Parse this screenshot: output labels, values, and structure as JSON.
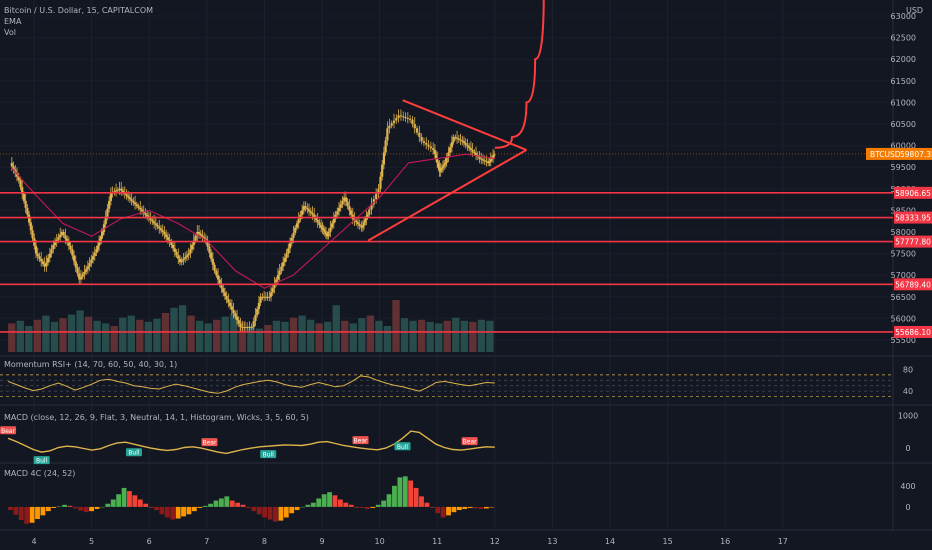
{
  "header": {
    "symbol_line": "Bitcoin / U.S. Dollar, 15, CAPITALCOM",
    "indicator_1": "EMA",
    "indicator_2": "Vol",
    "currency": "USD"
  },
  "colors": {
    "background": "#131722",
    "up": "#26a69a",
    "down": "#ef5350",
    "candle": "#e0b44c",
    "ema": "#c2185b",
    "level_line": "#f23645",
    "price_tag": "#f57c00",
    "forecast": "#ff3d3d"
  },
  "chart_data": [
    {
      "type": "candlestick",
      "pane": "price",
      "y_axis_ticks": [
        "63000",
        "62500",
        "62000",
        "61500",
        "61000",
        "60500",
        "60000",
        "59500",
        "59000",
        "58500",
        "58000",
        "57500",
        "57000",
        "56500",
        "56000",
        "55500"
      ],
      "ylim": [
        55400,
        63200
      ],
      "x_axis_ticks": [
        "4",
        "5",
        "6",
        "7",
        "8",
        "9",
        "10",
        "11",
        "12",
        "13",
        "14",
        "15",
        "16",
        "17"
      ],
      "current_price_tag": {
        "symbol": "BTCUSD",
        "value": "59807.35"
      },
      "horizontal_levels": [
        {
          "label": "58906.65",
          "value": 58906.65
        },
        {
          "label": "58333.95",
          "value": 58333.95
        },
        {
          "label": "57777.80",
          "value": 57777.8
        },
        {
          "label": "56789.40",
          "value": 56789.4
        },
        {
          "label": "55686.10",
          "value": 55686.1
        }
      ],
      "price_path": [
        [
          3.6,
          59600
        ],
        [
          3.75,
          59200
        ],
        [
          3.9,
          58400
        ],
        [
          4.05,
          57500
        ],
        [
          4.2,
          57200
        ],
        [
          4.35,
          57700
        ],
        [
          4.5,
          58000
        ],
        [
          4.65,
          57600
        ],
        [
          4.8,
          56900
        ],
        [
          4.95,
          57200
        ],
        [
          5.1,
          57600
        ],
        [
          5.2,
          58000
        ],
        [
          5.35,
          58900
        ],
        [
          5.5,
          59000
        ],
        [
          5.65,
          58800
        ],
        [
          5.8,
          58600
        ],
        [
          5.95,
          58400
        ],
        [
          6.1,
          58200
        ],
        [
          6.25,
          58000
        ],
        [
          6.4,
          57700
        ],
        [
          6.55,
          57300
        ],
        [
          6.7,
          57500
        ],
        [
          6.85,
          58000
        ],
        [
          7.0,
          57800
        ],
        [
          7.15,
          57100
        ],
        [
          7.3,
          56600
        ],
        [
          7.45,
          56200
        ],
        [
          7.6,
          55800
        ],
        [
          7.8,
          55800
        ],
        [
          7.95,
          56500
        ],
        [
          8.1,
          56500
        ],
        [
          8.25,
          57000
        ],
        [
          8.4,
          57500
        ],
        [
          8.55,
          58100
        ],
        [
          8.7,
          58600
        ],
        [
          8.85,
          58400
        ],
        [
          9.0,
          58100
        ],
        [
          9.1,
          57900
        ],
        [
          9.25,
          58400
        ],
        [
          9.4,
          58800
        ],
        [
          9.55,
          58300
        ],
        [
          9.7,
          58100
        ],
        [
          9.8,
          58400
        ],
        [
          10.0,
          59000
        ],
        [
          10.15,
          60400
        ],
        [
          10.35,
          60700
        ],
        [
          10.55,
          60600
        ],
        [
          10.75,
          60100
        ],
        [
          10.95,
          59900
        ],
        [
          11.05,
          59400
        ],
        [
          11.15,
          59600
        ],
        [
          11.3,
          60200
        ],
        [
          11.45,
          60100
        ],
        [
          11.6,
          59900
        ],
        [
          11.75,
          59700
        ],
        [
          11.9,
          59600
        ],
        [
          12.0,
          59800
        ]
      ],
      "ema_path": [
        [
          3.6,
          59500
        ],
        [
          4.0,
          58900
        ],
        [
          4.5,
          58200
        ],
        [
          5.0,
          57900
        ],
        [
          5.5,
          58300
        ],
        [
          6.0,
          58500
        ],
        [
          6.5,
          58200
        ],
        [
          7.0,
          57800
        ],
        [
          7.5,
          57100
        ],
        [
          8.0,
          56700
        ],
        [
          8.5,
          57000
        ],
        [
          9.0,
          57600
        ],
        [
          9.5,
          58200
        ],
        [
          10.0,
          58800
        ],
        [
          10.5,
          59600
        ],
        [
          11.0,
          59700
        ],
        [
          11.5,
          59800
        ],
        [
          12.0,
          59700
        ]
      ],
      "triangle": {
        "upper": [
          [
            10.4,
            61050
          ],
          [
            11.95,
            59600
          ]
        ],
        "lower": [
          [
            9.8,
            57800
          ],
          [
            11.95,
            59600
          ]
        ],
        "apex": [
          12.55,
          59900
        ]
      },
      "forecast_curve": [
        [
          12.0,
          59950
        ],
        [
          12.3,
          60200
        ],
        [
          12.55,
          61000
        ],
        [
          12.7,
          62000
        ],
        [
          12.85,
          63500
        ]
      ]
    },
    {
      "type": "bar",
      "pane": "volume",
      "series": [
        {
          "name": "Vol",
          "values": [
            0.55,
            0.6,
            0.5,
            0.62,
            0.7,
            0.58,
            0.65,
            0.72,
            0.8,
            0.68,
            0.6,
            0.55,
            0.5,
            0.66,
            0.7,
            0.62,
            0.58,
            0.64,
            0.75,
            0.85,
            0.9,
            0.7,
            0.6,
            0.55,
            0.62,
            0.68,
            0.72,
            0.6,
            0.5,
            0.45,
            0.52,
            0.6,
            0.58,
            0.66,
            0.7,
            0.62,
            0.55,
            0.58,
            0.9,
            0.6,
            0.55,
            0.65,
            0.7,
            0.6,
            0.5,
            1.0,
            0.65,
            0.6,
            0.62,
            0.58,
            0.55,
            0.6,
            0.66,
            0.6,
            0.58,
            0.62,
            0.6
          ]
        }
      ]
    },
    {
      "type": "line",
      "pane": "rsi",
      "title": "Momentum RSI+ (14, 70, 60, 50, 40, 30, 1)",
      "y_axis_ticks": [
        "80",
        "40"
      ],
      "ylim": [
        20,
        90
      ],
      "guide_levels": [
        70,
        60,
        50,
        40,
        30
      ],
      "series": [
        {
          "name": "RSI",
          "values": [
            58,
            52,
            46,
            41,
            44,
            50,
            55,
            49,
            42,
            47,
            53,
            60,
            62,
            58,
            55,
            50,
            48,
            45,
            44,
            49,
            53,
            50,
            46,
            42,
            38,
            36,
            40,
            47,
            52,
            55,
            58,
            60,
            57,
            52,
            49,
            47,
            52,
            56,
            52,
            48,
            50,
            58,
            68,
            66,
            60,
            55,
            51,
            48,
            44,
            40,
            47,
            56,
            58,
            55,
            52,
            50,
            53,
            56,
            55
          ]
        }
      ]
    },
    {
      "type": "line",
      "pane": "macd",
      "title": "MACD (close, 12, 26, 9, Flat, 3, Neutral, 14, 1, Histogram, Wicks, 3, 5, 60, 5)",
      "y_axis_ticks": [
        "1000",
        "0"
      ],
      "ylim": [
        -300,
        1100
      ],
      "series": [
        {
          "name": "MACD",
          "values": [
            300,
            200,
            80,
            -40,
            -120,
            -80,
            20,
            60,
            40,
            -10,
            -60,
            -20,
            80,
            160,
            180,
            120,
            60,
            0,
            -40,
            -70,
            -40,
            20,
            40,
            0,
            -60,
            -120,
            -160,
            -100,
            -40,
            0,
            40,
            60,
            80,
            100,
            90,
            80,
            120,
            180,
            200,
            140,
            80,
            40,
            0,
            -30,
            -50,
            0,
            120,
            300,
            520,
            480,
            300,
            120,
            20,
            -40,
            -60,
            -30,
            10,
            40,
            30
          ]
        }
      ],
      "signal_labels": [
        "Bear",
        "Bull",
        "Bull",
        "Bear",
        "Bull",
        "Bear",
        "Bull",
        "Bear"
      ]
    },
    {
      "type": "bar",
      "pane": "macd4c",
      "title": "MACD 4C (24, 52)",
      "y_axis_ticks": [
        "400",
        "0"
      ],
      "ylim": [
        -400,
        700
      ],
      "series": [
        {
          "name": "MACD 4C",
          "values": [
            -60,
            -150,
            -250,
            -320,
            -300,
            -230,
            -160,
            -80,
            -20,
            10,
            40,
            20,
            -30,
            -70,
            -100,
            -80,
            -40,
            0,
            60,
            140,
            240,
            360,
            300,
            220,
            140,
            60,
            0,
            -60,
            -140,
            -200,
            -240,
            -220,
            -180,
            -140,
            -80,
            -20,
            20,
            60,
            120,
            160,
            200,
            120,
            80,
            40,
            -20,
            -80,
            -140,
            -200,
            -240,
            -280,
            -260,
            -200,
            -120,
            -60,
            0,
            40,
            80,
            160,
            240,
            280,
            220,
            140,
            80,
            40,
            0,
            -20,
            -40,
            -20,
            40,
            120,
            240,
            400,
            560,
            580,
            500,
            360,
            200,
            80,
            0,
            -120,
            -200,
            -160,
            -100,
            -60,
            -40,
            -20,
            -30,
            -40,
            -30,
            -10
          ]
        }
      ]
    }
  ]
}
